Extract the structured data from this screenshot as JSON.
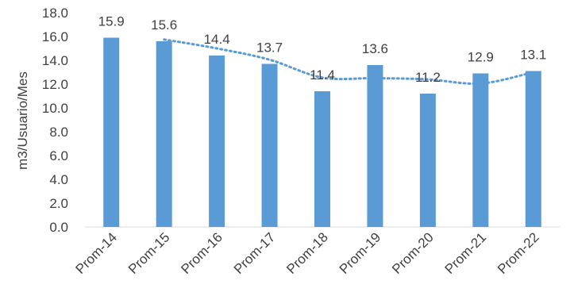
{
  "chart_data": {
    "type": "bar",
    "categories": [
      "Prom-14",
      "Prom-15",
      "Prom-16",
      "Prom-17",
      "Prom-18",
      "Prom-19",
      "Prom-20",
      "Prom-21",
      "Prom-22"
    ],
    "values": [
      15.9,
      15.6,
      14.4,
      13.7,
      11.4,
      13.6,
      11.2,
      12.9,
      13.1
    ],
    "data_labels": [
      "15.9",
      "15.6",
      "14.4",
      "13.7",
      "11.4",
      "13.6",
      "11.2",
      "12.9",
      "13.1"
    ],
    "ylabel": "m3/Usuario/Mes",
    "ylim": [
      0,
      18
    ],
    "yticks": [
      "0.0",
      "2.0",
      "4.0",
      "6.0",
      "8.0",
      "10.0",
      "12.0",
      "14.0",
      "16.0",
      "18.0"
    ],
    "trendline": {
      "type": "moving-average",
      "period": 2,
      "style": "dotted"
    },
    "grid": false,
    "legend": "none",
    "colors": {
      "bar": "#5B9BD5",
      "trendline": "#5B9BD5",
      "axis": "#D9D9D9",
      "text": "#404040"
    }
  }
}
